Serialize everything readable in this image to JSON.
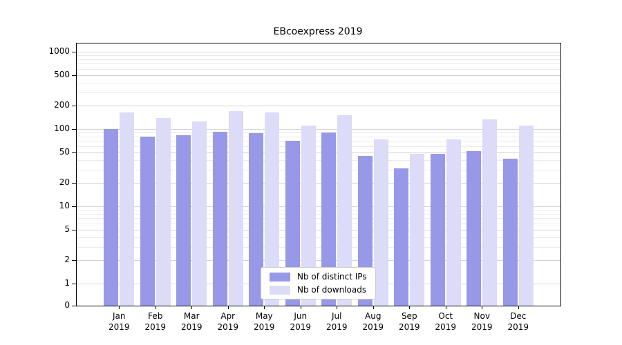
{
  "figure": {
    "title": "EBcoexpress 2019"
  },
  "legend": {
    "items": [
      {
        "label": "Nb of distinct IPs"
      },
      {
        "label": "Nb of downloads"
      }
    ]
  },
  "colors": {
    "distinct_ips": "#9898e8",
    "downloads": "#dcdbf8",
    "grid_major": "#d4d4d4",
    "grid_minor": "#eaeaea",
    "axis": "#000000",
    "background": "#ffffff"
  },
  "chart_data": {
    "type": "bar",
    "title": "EBcoexpress 2019",
    "x_categories": [
      "Jan 2019",
      "Feb 2019",
      "Mar 2019",
      "Apr 2019",
      "May 2019",
      "Jun 2019",
      "Jul 2019",
      "Aug 2019",
      "Sep 2019",
      "Oct 2019",
      "Nov 2019",
      "Dec 2019"
    ],
    "x_tick_line1": [
      "Jan",
      "Feb",
      "Mar",
      "Apr",
      "May",
      "Jun",
      "Jul",
      "Aug",
      "Sep",
      "Oct",
      "Nov",
      "Dec"
    ],
    "x_tick_line2": "2019",
    "series": [
      {
        "name": "Nb of distinct IPs",
        "values": [
          100,
          80,
          83,
          93,
          88,
          70,
          91,
          45,
          31,
          48,
          52,
          41
        ]
      },
      {
        "name": "Nb of downloads",
        "values": [
          165,
          140,
          125,
          170,
          165,
          110,
          150,
          74,
          48,
          74,
          133,
          110
        ]
      }
    ],
    "y_scale": "log",
    "y_ticks": [
      0,
      1,
      2,
      5,
      10,
      20,
      50,
      100,
      200,
      500,
      1000
    ],
    "ylim": [
      0,
      1300
    ],
    "grid": true,
    "legend_position": "lower center",
    "xlabel": "",
    "ylabel": ""
  }
}
